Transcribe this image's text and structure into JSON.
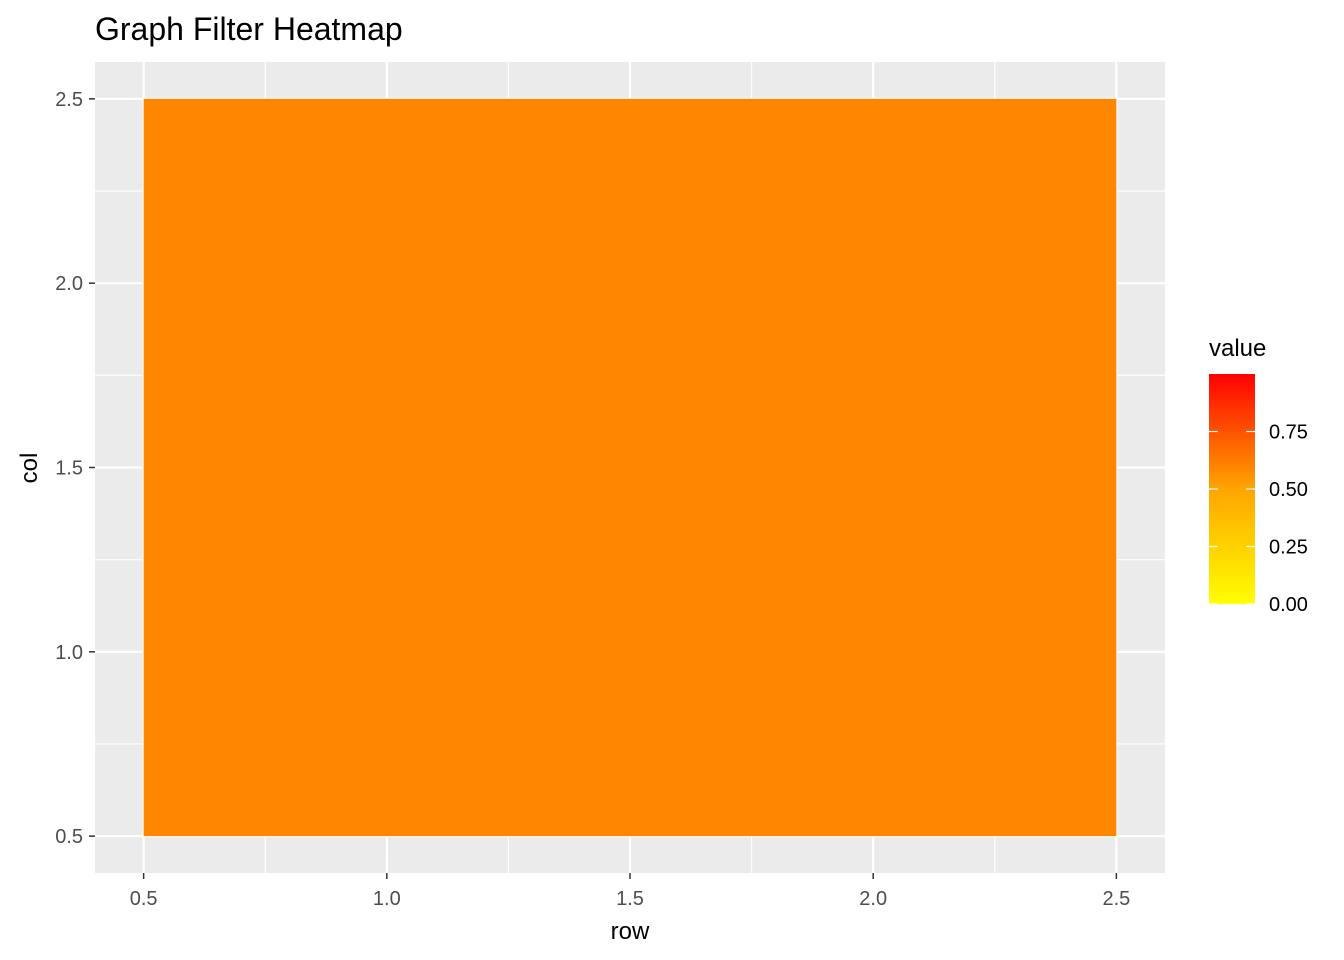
{
  "chart_data": {
    "type": "heatmap",
    "title": "Graph Filter Heatmap",
    "xlabel": "row",
    "ylabel": "col",
    "xlim": [
      0.4,
      2.6
    ],
    "ylim": [
      0.4,
      2.6
    ],
    "x_ticks": [
      0.5,
      1.0,
      1.5,
      2.0,
      2.5
    ],
    "x_tick_labels": [
      "0.5",
      "1.0",
      "1.5",
      "2.0",
      "2.5"
    ],
    "y_ticks": [
      0.5,
      1.0,
      1.5,
      2.0,
      2.5
    ],
    "y_tick_labels": [
      "0.5",
      "1.0",
      "1.5",
      "2.0",
      "2.5"
    ],
    "grid": true,
    "cells": [
      {
        "row": 1.5,
        "col": 1.5,
        "width": 2,
        "height": 2,
        "value": 0.59
      }
    ],
    "legend": {
      "title": "value",
      "position": "right",
      "range": [
        0,
        1
      ],
      "low_color": "#FFFF00",
      "mid_color": "#FFA500",
      "high_color": "#FF0000",
      "breaks": [
        0.0,
        0.25,
        0.5,
        0.75
      ],
      "break_labels": [
        "0.00",
        "0.25",
        "0.50",
        "0.75"
      ]
    },
    "panel_background": "#EBEBEB",
    "grid_color": "#FFFFFF"
  }
}
